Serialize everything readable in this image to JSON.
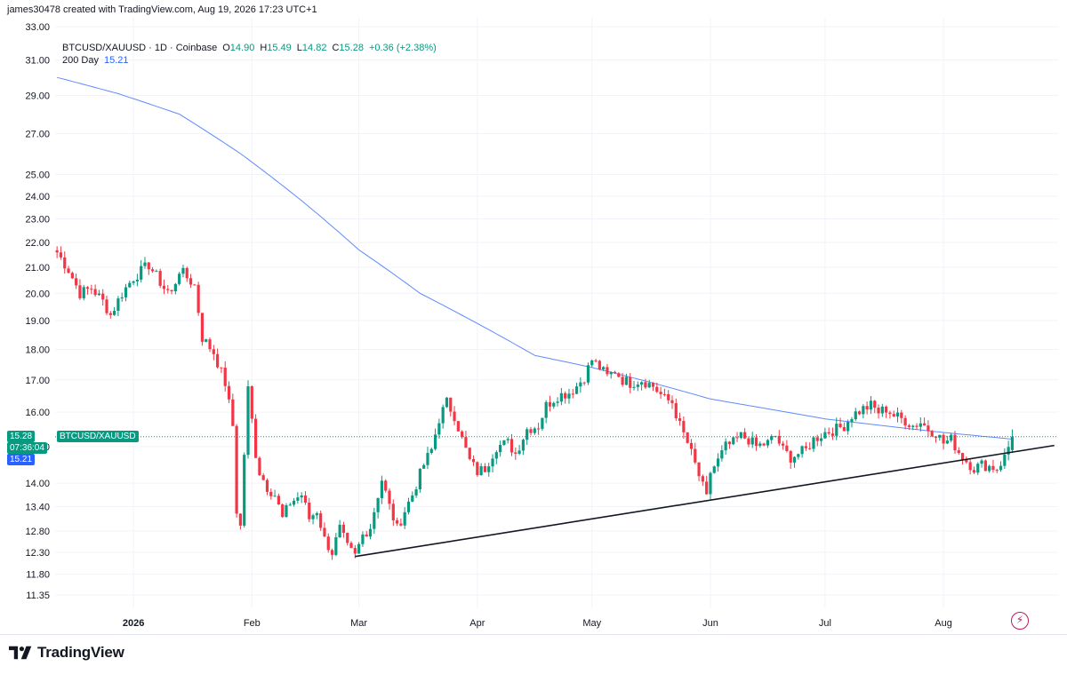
{
  "header": {
    "credit": "james30478 created with TradingView.com, Aug 19, 2026 17:23 UTC+1"
  },
  "legend": {
    "symbol": "BTCUSD/XAUUSD · 1D · Coinbase",
    "o_label": "O",
    "o": "14.90",
    "h_label": "H",
    "h": "15.49",
    "l_label": "L",
    "l": "14.82",
    "c_label": "C",
    "c": "15.28",
    "change": "+0.36 (+2.38%)",
    "ma_label": "200 Day",
    "ma_value": "15.21"
  },
  "badges": {
    "symbol_tag": "BTCUSD/XAUUSD",
    "last_price": "15.28",
    "countdown": "07:36:04",
    "ma_price": "15.21"
  },
  "branding": {
    "logo_text": "TradingView"
  },
  "colors": {
    "up": "#089981",
    "down": "#f23645",
    "ma": "#2962ff",
    "trendline": "#131722",
    "grid": "#f0f3fa",
    "price_line": "#089981"
  },
  "icons": {
    "flash": "lightning-icon",
    "logo": "tradingview-logo-icon"
  },
  "chart_data": {
    "type": "candlestick",
    "title": "BTCUSD/XAUUSD · 1D · Coinbase",
    "ylabel": "",
    "xlabel": "",
    "y_scale": "log",
    "ylim": [
      11.2,
      33.0
    ],
    "y_ticks": [
      "33.00",
      "31.00",
      "29.00",
      "27.00",
      "25.00",
      "24.00",
      "23.00",
      "22.00",
      "21.00",
      "20.00",
      "19.00",
      "18.00",
      "17.00",
      "16.00",
      "15.00",
      "14.00",
      "13.40",
      "12.80",
      "12.30",
      "11.80",
      "11.35"
    ],
    "x_labels": [
      {
        "label": "2026",
        "day": 20,
        "bold": true
      },
      {
        "label": "Feb",
        "day": 51,
        "bold": false
      },
      {
        "label": "Mar",
        "day": 79,
        "bold": false
      },
      {
        "label": "Apr",
        "day": 110,
        "bold": false
      },
      {
        "label": "May",
        "day": 140,
        "bold": false
      },
      {
        "label": "Jun",
        "day": 171,
        "bold": false
      },
      {
        "label": "Jul",
        "day": 201,
        "bold": false
      },
      {
        "label": "Aug",
        "day": 232,
        "bold": false
      }
    ],
    "xlim_days": [
      -0.5,
      262
    ],
    "close_anchors": [
      [
        0,
        21.6
      ],
      [
        3,
        20.9
      ],
      [
        6,
        20.0
      ],
      [
        9,
        20.2
      ],
      [
        12,
        19.7
      ],
      [
        14,
        19.2
      ],
      [
        17,
        20.0
      ],
      [
        20,
        20.6
      ],
      [
        24,
        21.1
      ],
      [
        28,
        20.2
      ],
      [
        30,
        20.0
      ],
      [
        32,
        20.9
      ],
      [
        36,
        20.3
      ],
      [
        38,
        18.4
      ],
      [
        41,
        17.9
      ],
      [
        44,
        16.9
      ],
      [
        46,
        15.6
      ],
      [
        47,
        13.3
      ],
      [
        48,
        12.9
      ],
      [
        50,
        16.7
      ],
      [
        52,
        14.8
      ],
      [
        53,
        14.3
      ],
      [
        55,
        13.9
      ],
      [
        57,
        13.7
      ],
      [
        59,
        13.1
      ],
      [
        61,
        13.5
      ],
      [
        64,
        13.7
      ],
      [
        66,
        13.1
      ],
      [
        68,
        13.3
      ],
      [
        70,
        12.6
      ],
      [
        72,
        12.3
      ],
      [
        74,
        12.85
      ],
      [
        76,
        12.4
      ],
      [
        78,
        12.2
      ],
      [
        80,
        12.7
      ],
      [
        82,
        12.9
      ],
      [
        85,
        14.1
      ],
      [
        87,
        13.4
      ],
      [
        89,
        12.85
      ],
      [
        91,
        13.3
      ],
      [
        93,
        13.7
      ],
      [
        96,
        14.5
      ],
      [
        98,
        14.9
      ],
      [
        100,
        15.8
      ],
      [
        102,
        16.3
      ],
      [
        104,
        15.9
      ],
      [
        106,
        15.2
      ],
      [
        108,
        14.6
      ],
      [
        110,
        14.3
      ],
      [
        112,
        14.4
      ],
      [
        115,
        15.0
      ],
      [
        118,
        15.1
      ],
      [
        120,
        14.8
      ],
      [
        123,
        15.5
      ],
      [
        126,
        15.6
      ],
      [
        128,
        16.2
      ],
      [
        131,
        16.5
      ],
      [
        134,
        16.6
      ],
      [
        136,
        16.8
      ],
      [
        138,
        17.1
      ],
      [
        140,
        17.65
      ],
      [
        142,
        17.4
      ],
      [
        144,
        17.1
      ],
      [
        146,
        17.3
      ],
      [
        148,
        17.0
      ],
      [
        150,
        16.9
      ],
      [
        153,
        17.0
      ],
      [
        156,
        16.8
      ],
      [
        159,
        16.4
      ],
      [
        161,
        16.3
      ],
      [
        163,
        15.6
      ],
      [
        165,
        15.1
      ],
      [
        167,
        14.5
      ],
      [
        169,
        13.9
      ],
      [
        170,
        13.6
      ],
      [
        171,
        14.3
      ],
      [
        173,
        14.6
      ],
      [
        175,
        15.0
      ],
      [
        177,
        15.1
      ],
      [
        179,
        15.3
      ],
      [
        181,
        15.2
      ],
      [
        183,
        15.0
      ],
      [
        186,
        15.1
      ],
      [
        188,
        15.3
      ],
      [
        190,
        14.9
      ],
      [
        192,
        14.7
      ],
      [
        194,
        14.8
      ],
      [
        196,
        14.9
      ],
      [
        198,
        15.2
      ],
      [
        201,
        15.4
      ],
      [
        204,
        15.5
      ],
      [
        206,
        15.6
      ],
      [
        208,
        15.9
      ],
      [
        211,
        16.1
      ],
      [
        213,
        16.2
      ],
      [
        215,
        16.0
      ],
      [
        217,
        16.1
      ],
      [
        219,
        15.9
      ],
      [
        222,
        15.75
      ],
      [
        224,
        15.6
      ],
      [
        226,
        15.7
      ],
      [
        228,
        15.5
      ],
      [
        230,
        15.4
      ],
      [
        232,
        15.1
      ],
      [
        234,
        15.2
      ],
      [
        236,
        14.85
      ],
      [
        238,
        14.6
      ],
      [
        240,
        14.4
      ],
      [
        242,
        14.5
      ],
      [
        244,
        14.45
      ],
      [
        246,
        14.4
      ],
      [
        248,
        14.7
      ],
      [
        250,
        15.28
      ]
    ],
    "last_candle": {
      "o": 14.9,
      "h": 15.49,
      "l": 14.82,
      "c": 15.28
    },
    "series": [
      {
        "name": "200 Day",
        "kind": "moving_average",
        "points": [
          [
            0,
            30.0
          ],
          [
            16,
            29.1
          ],
          [
            32,
            28.0
          ],
          [
            48,
            26.0
          ],
          [
            64,
            23.8
          ],
          [
            79,
            21.7
          ],
          [
            95,
            20.0
          ],
          [
            110,
            18.9
          ],
          [
            125,
            17.8
          ],
          [
            140,
            17.4
          ],
          [
            156,
            16.9
          ],
          [
            171,
            16.4
          ],
          [
            186,
            16.1
          ],
          [
            201,
            15.8
          ],
          [
            216,
            15.6
          ],
          [
            232,
            15.4
          ],
          [
            250,
            15.21
          ]
        ]
      },
      {
        "name": "",
        "kind": "trendline",
        "points": [
          [
            78,
            12.2
          ],
          [
            170,
            13.6
          ],
          [
            261,
            15.03
          ]
        ]
      }
    ]
  }
}
